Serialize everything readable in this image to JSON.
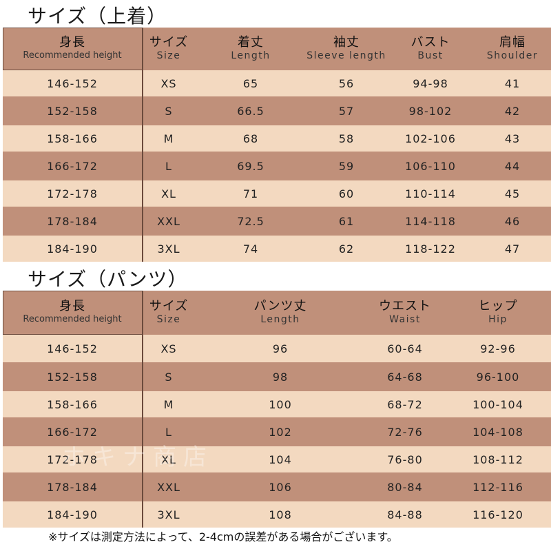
{
  "tops": {
    "title": "サイズ（上着）",
    "headers": [
      {
        "jp": "身長",
        "en": "Recommended height"
      },
      {
        "jp": "サイズ",
        "en": "Size"
      },
      {
        "jp": "着丈",
        "en": "Length"
      },
      {
        "jp": "袖丈",
        "en": "Sleeve length"
      },
      {
        "jp": "バスト",
        "en": "Bust"
      },
      {
        "jp": "肩幅",
        "en": "Shoulder"
      }
    ],
    "rows": [
      [
        "146-152",
        "XS",
        "65",
        "56",
        "94-98",
        "41"
      ],
      [
        "152-158",
        "S",
        "66.5",
        "57",
        "98-102",
        "42"
      ],
      [
        "158-166",
        "M",
        "68",
        "58",
        "102-106",
        "43"
      ],
      [
        "166-172",
        "L",
        "69.5",
        "59",
        "106-110",
        "44"
      ],
      [
        "172-178",
        "XL",
        "71",
        "60",
        "110-114",
        "45"
      ],
      [
        "178-184",
        "XXL",
        "72.5",
        "61",
        "114-118",
        "46"
      ],
      [
        "184-190",
        "3XL",
        "74",
        "62",
        "118-122",
        "47"
      ]
    ]
  },
  "pants": {
    "title": "サイズ（パンツ）",
    "headers": [
      {
        "jp": "身長",
        "en": "Recommended height"
      },
      {
        "jp": "サイズ",
        "en": "Size"
      },
      {
        "jp": "パンツ丈",
        "en": "Length"
      },
      {
        "jp": "ウエスト",
        "en": "Waist"
      },
      {
        "jp": "ヒップ",
        "en": "Hip"
      }
    ],
    "rows": [
      [
        "146-152",
        "XS",
        "96",
        "60-64",
        "92-96"
      ],
      [
        "152-158",
        "S",
        "98",
        "64-68",
        "96-100"
      ],
      [
        "158-166",
        "M",
        "100",
        "68-72",
        "100-104"
      ],
      [
        "166-172",
        "L",
        "102",
        "72-76",
        "104-108"
      ],
      [
        "172-178",
        "XL",
        "104",
        "76-80",
        "108-112"
      ],
      [
        "178-184",
        "XXL",
        "106",
        "80-84",
        "112-116"
      ],
      [
        "184-190",
        "3XL",
        "108",
        "84-88",
        "116-120"
      ]
    ]
  },
  "note": "※サイズは測定方法によって、2-4cmの誤差がある場合がございます。",
  "watermark": "ホキナ商店"
}
